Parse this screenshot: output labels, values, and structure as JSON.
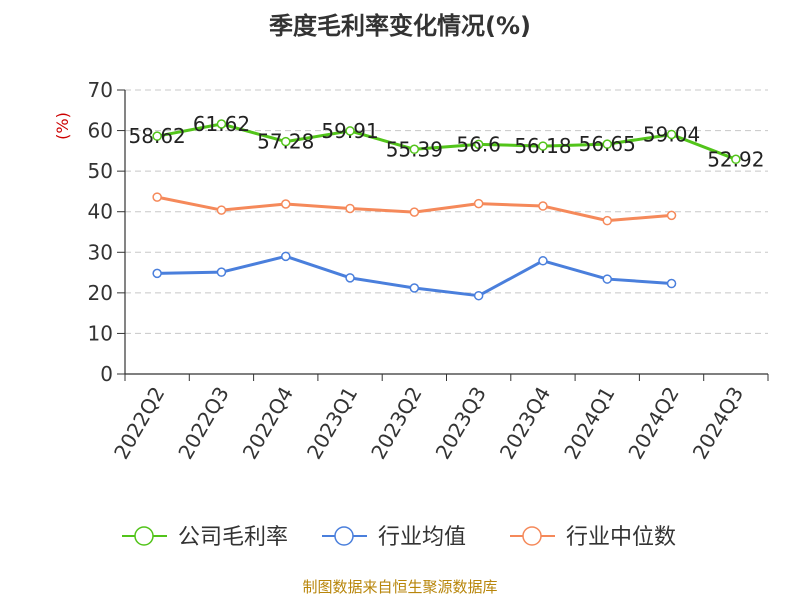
{
  "title": "季度毛利率变化情况(%)",
  "source": "制图数据来自恒生聚源数据库",
  "colors": {
    "company": "#52c41a",
    "industry_avg": "#4a7fdc",
    "industry_median": "#f5895a",
    "ylabel": "#cc0000",
    "grid": "#c8c8c8",
    "source": "#b8860b"
  },
  "chart_data": {
    "type": "line",
    "title": "季度毛利率变化情况(%)",
    "ylabel": "(%)",
    "xlabel": "",
    "ylim": [
      0,
      70
    ],
    "yticks": [
      0,
      10,
      20,
      30,
      40,
      50,
      60,
      70
    ],
    "grid": true,
    "legend_position": "bottom",
    "categories": [
      "2022Q2",
      "2022Q3",
      "2022Q4",
      "2023Q1",
      "2023Q2",
      "2023Q3",
      "2023Q4",
      "2024Q1",
      "2024Q2",
      "2024Q3"
    ],
    "series": [
      {
        "name": "公司毛利率",
        "color": "#52c41a",
        "values": [
          58.62,
          61.62,
          57.28,
          59.91,
          55.39,
          56.6,
          56.18,
          56.65,
          59.04,
          52.92
        ],
        "labels": [
          "58.62",
          "61.62",
          "57.28",
          "59.91",
          "55.39",
          "56.6",
          "56.18",
          "56.65",
          "59.04",
          "52.92"
        ]
      },
      {
        "name": "行业均值",
        "color": "#4a7fdc",
        "values": [
          24.8,
          25.1,
          29.0,
          23.7,
          21.2,
          19.3,
          27.9,
          23.4,
          22.3,
          null
        ]
      },
      {
        "name": "行业中位数",
        "color": "#f5895a",
        "values": [
          43.6,
          40.4,
          41.9,
          40.8,
          39.9,
          42.0,
          41.4,
          37.8,
          39.1,
          null
        ]
      }
    ]
  }
}
